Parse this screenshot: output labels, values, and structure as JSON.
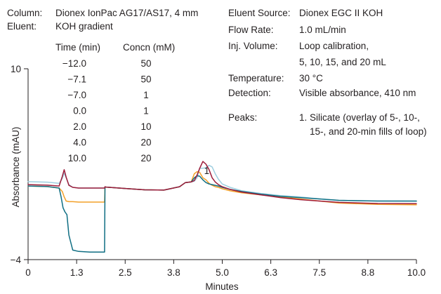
{
  "conditions_left": {
    "column_label": "Column:",
    "column_value": "Dionex IonPac AG17/AS17, 4 mm",
    "eluent_label": "Eluent:",
    "eluent_value": "KOH gradient",
    "gradient_headers": [
      "Time (min)",
      "Concn (mM)"
    ],
    "gradient_rows": [
      [
        "−12.0",
        "50"
      ],
      [
        "−7.1",
        "50"
      ],
      [
        "−7.0",
        "1"
      ],
      [
        "0.0",
        "1"
      ],
      [
        "2.0",
        "10"
      ],
      [
        "4.0",
        "20"
      ],
      [
        "10.0",
        "20"
      ]
    ]
  },
  "conditions_right": {
    "source_label": "Eluent Source:",
    "source_value": "Dionex EGC II KOH",
    "flow_label": "Flow Rate:",
    "flow_value": "1.0 mL/min",
    "inj_label": "Inj. Volume:",
    "inj_value_1": "Loop calibration,",
    "inj_value_2": "5, 10, 15, and 20 mL",
    "temp_label": "Temperature:",
    "temp_value": "30 °C",
    "detection_label": "Detection:",
    "detection_value": "Visible absorbance, 410 nm",
    "peaks_label": "Peaks:",
    "peaks_value_1": "1. Silicate (overlay of 5-, 10-,",
    "peaks_value_2": "15-, and 20-min fills of loop)"
  },
  "chart_data": {
    "type": "line",
    "xlabel": "Minutes",
    "ylabel": "Absorbance (mAU)",
    "xlim": [
      0,
      10.0
    ],
    "ylim": [
      -4,
      10
    ],
    "x_ticks": [
      "0",
      "1.3",
      "2.5",
      "3.8",
      "5.0",
      "6.3",
      "7.5",
      "8.8",
      "10.0"
    ],
    "y_ticks": [
      "10",
      "−4"
    ],
    "peak_label": "1",
    "peak_x": 4.6,
    "series": [
      {
        "color": "#9ecfe0",
        "x": [
          0,
          0.5,
          0.8,
          0.88,
          0.93,
          0.98,
          1.05,
          1.15,
          1.3,
          1.6,
          1.97,
          1.98,
          2.0,
          2.5,
          3.0,
          3.5,
          3.9,
          4.05,
          4.2,
          4.28,
          4.35,
          4.42,
          4.5,
          4.58,
          4.66,
          4.74,
          4.82,
          4.9,
          5.0,
          5.2,
          5.5,
          6.0,
          6.5,
          7.0,
          7.5,
          8.0,
          9.0,
          10.0
        ],
        "y": [
          1.72,
          1.68,
          1.6,
          1.95,
          2.35,
          2.0,
          1.5,
          1.3,
          1.25,
          1.25,
          1.25,
          1.35,
          1.32,
          1.22,
          1.12,
          1.1,
          1.35,
          1.65,
          1.7,
          1.75,
          2.0,
          2.7,
          2.7,
          2.75,
          2.92,
          2.8,
          2.3,
          1.9,
          1.55,
          1.3,
          1.05,
          0.85,
          0.7,
          0.6,
          0.45,
          0.35,
          0.3,
          0.28
        ]
      },
      {
        "color": "#f3a028",
        "x": [
          0,
          0.5,
          0.8,
          0.88,
          0.93,
          0.98,
          1.05,
          1.15,
          1.3,
          1.6,
          1.97,
          1.98,
          2.0,
          2.5,
          3.0,
          3.5,
          3.9,
          4.05,
          4.2,
          4.28,
          4.35,
          4.42,
          4.5,
          4.58,
          4.66,
          4.74,
          4.82,
          4.9,
          5.0,
          5.2,
          5.5,
          6.0,
          6.5,
          7.0,
          7.5,
          8.0,
          9.0,
          10.0
        ],
        "y": [
          1.4,
          1.36,
          1.25,
          1.0,
          0.6,
          0.3,
          0.25,
          0.25,
          0.22,
          0.22,
          0.22,
          1.3,
          1.32,
          1.22,
          1.12,
          1.1,
          1.35,
          1.65,
          1.7,
          2.3,
          2.45,
          2.4,
          2.0,
          1.85,
          1.6,
          1.45,
          1.35,
          1.3,
          1.2,
          1.05,
          0.9,
          0.75,
          0.6,
          0.45,
          0.3,
          0.15,
          0.05,
          0.02
        ]
      },
      {
        "color": "#0f6e83",
        "x": [
          0,
          0.5,
          0.8,
          0.85,
          0.9,
          0.95,
          1.0,
          1.05,
          1.15,
          1.3,
          1.6,
          1.97,
          1.98,
          2.0,
          2.5,
          3.0,
          3.5,
          3.9,
          4.05,
          4.2,
          4.28,
          4.35,
          4.42,
          4.5,
          4.58,
          4.66,
          4.74,
          4.82,
          4.9,
          5.0,
          5.2,
          5.5,
          6.0,
          6.5,
          7.0,
          7.5,
          8.0,
          9.0,
          10.0
        ],
        "y": [
          1.4,
          1.36,
          1.25,
          0.6,
          -0.2,
          -0.5,
          -0.7,
          -2.2,
          -3.3,
          -3.4,
          -3.45,
          -3.45,
          1.32,
          1.32,
          1.22,
          1.12,
          1.1,
          1.35,
          1.65,
          1.7,
          2.0,
          2.15,
          2.12,
          1.85,
          1.65,
          1.55,
          1.5,
          1.45,
          1.4,
          1.3,
          1.15,
          1.0,
          0.8,
          0.65,
          0.55,
          0.45,
          0.35,
          0.3,
          0.3
        ]
      },
      {
        "color": "#9d1c3a",
        "x": [
          0,
          0.5,
          0.8,
          0.88,
          0.93,
          0.98,
          1.05,
          1.15,
          1.3,
          1.6,
          1.97,
          1.98,
          2.0,
          2.5,
          3.0,
          3.5,
          3.9,
          4.05,
          4.2,
          4.28,
          4.35,
          4.42,
          4.5,
          4.58,
          4.66,
          4.74,
          4.82,
          4.9,
          5.0,
          5.2,
          5.5,
          6.0,
          6.5,
          7.0,
          7.5,
          8.0,
          9.0,
          10.0
        ],
        "y": [
          1.5,
          1.46,
          1.4,
          2.1,
          2.6,
          2.05,
          1.45,
          1.3,
          1.25,
          1.25,
          1.25,
          1.35,
          1.32,
          1.22,
          1.12,
          1.1,
          1.35,
          1.65,
          1.7,
          1.8,
          2.2,
          2.7,
          3.2,
          3.0,
          2.6,
          2.0,
          1.7,
          1.5,
          1.35,
          1.15,
          0.95,
          0.75,
          0.55,
          0.4,
          0.3,
          0.2,
          0.12,
          0.1
        ]
      }
    ]
  }
}
